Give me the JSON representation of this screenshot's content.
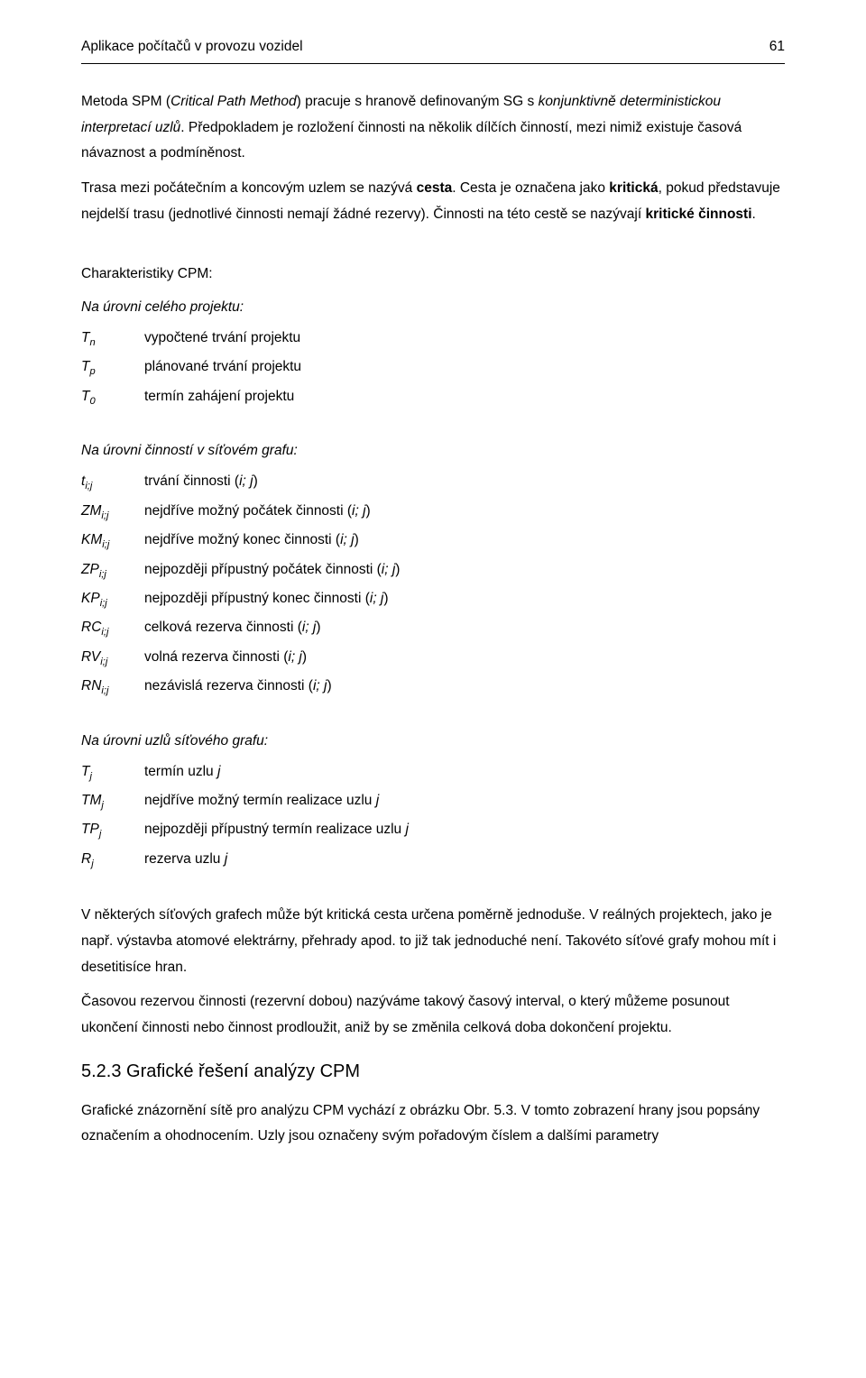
{
  "header": {
    "title": "Aplikace počítačů v provozu vozidel",
    "page": "61"
  },
  "intro": {
    "p1_a": "Metoda SPM (",
    "p1_b": "Critical Path Method",
    "p1_c": ") pracuje s hranově definovaným SG s ",
    "p1_d": "konjunktivně deterministickou interpretací uzlů",
    "p1_e": ". Předpokladem je rozložení činnosti na několik dílčích činností, mezi nimiž existuje časová návaznost a podmíněnost."
  },
  "intro2": {
    "a": "Trasa mezi počátečním a koncovým uzlem se nazývá ",
    "b": "cesta",
    "c": ". Cesta je označena jako ",
    "d": "kritická",
    "e": ", pokud představuje nejdelší trasu (jednotlivé činnosti nemají žádné rezervy). Činnosti na této cestě se nazývají ",
    "f": "kritické činnosti",
    "g": "."
  },
  "char_title": "Charakteristiky CPM:",
  "proj": {
    "title": "Na úrovni celého projektu:",
    "rows": [
      {
        "sym": "T",
        "sub": "n",
        "desc": "vypočtené trvání projektu"
      },
      {
        "sym": "T",
        "sub": "p",
        "desc": "plánované trvání projektu"
      },
      {
        "sym": "T",
        "sub": "0",
        "desc": "termín zahájení projektu"
      }
    ]
  },
  "acts": {
    "title": "Na úrovni činností v síťovém grafu:",
    "rows": [
      {
        "sym": "t",
        "sub": "i;j",
        "desc_a": "trvání činnosti (",
        "desc_b": "i; j",
        "desc_c": ")"
      },
      {
        "sym": "ZM",
        "sub": "i;j",
        "desc_a": "nejdříve možný počátek činnosti (",
        "desc_b": "i; j",
        "desc_c": ")"
      },
      {
        "sym": "KM",
        "sub": "i;j",
        "desc_a": "nejdříve možný konec činnosti (",
        "desc_b": "i; j",
        "desc_c": ")"
      },
      {
        "sym": "ZP",
        "sub": "i;j",
        "desc_a": "nejpozději přípustný počátek činnosti (",
        "desc_b": "i; j",
        "desc_c": ")"
      },
      {
        "sym": "KP",
        "sub": "i;j",
        "desc_a": "nejpozději přípustný konec činnosti (",
        "desc_b": "i; j",
        "desc_c": ")"
      },
      {
        "sym": "RC",
        "sub": "i;j",
        "desc_a": "celková rezerva činnosti (",
        "desc_b": "i; j",
        "desc_c": ")"
      },
      {
        "sym": "RV",
        "sub": "i;j",
        "desc_a": "volná rezerva činnosti (",
        "desc_b": "i; j",
        "desc_c": ")"
      },
      {
        "sym": "RN",
        "sub": "i;j",
        "desc_a": "nezávislá rezerva činnosti (",
        "desc_b": "i; j",
        "desc_c": ")"
      }
    ]
  },
  "nodes": {
    "title": "Na úrovni uzlů síťového grafu:",
    "rows": [
      {
        "sym": "T",
        "sub": "j",
        "desc_a": "termín uzlu ",
        "desc_b": "j",
        "desc_c": ""
      },
      {
        "sym": "TM",
        "sub": "j",
        "desc_a": "nejdříve možný termín realizace uzlu ",
        "desc_b": "j",
        "desc_c": ""
      },
      {
        "sym": "TP",
        "sub": "j",
        "desc_a": "nejpozději přípustný termín realizace uzlu ",
        "desc_b": "j",
        "desc_c": ""
      },
      {
        "sym": "R",
        "sub": "j",
        "desc_a": "rezerva uzlu ",
        "desc_b": "j",
        "desc_c": ""
      }
    ]
  },
  "outro": {
    "p1": "V některých síťových grafech může být kritická cesta určena poměrně jednoduše. V reálných projektech, jako je např. výstavba atomové elektrárny, přehrady apod. to již tak jednoduché není. Takovéto síťové grafy mohou mít i desetitisíce hran.",
    "p2": "Časovou rezervou činnosti (rezervní dobou) nazýváme takový časový interval, o který můžeme posunout ukončení činnosti nebo činnost prodloužit, aniž by se změnila celková doba dokončení projektu."
  },
  "subheading": "5.2.3 Grafické řešení analýzy CPM",
  "last": "Grafické znázornění sítě pro analýzu CPM vychází z obrázku Obr. 5.3. V tomto zobrazení hrany jsou popsány označením a ohodnocením. Uzly jsou označeny svým pořadovým číslem a dalšími parametry"
}
